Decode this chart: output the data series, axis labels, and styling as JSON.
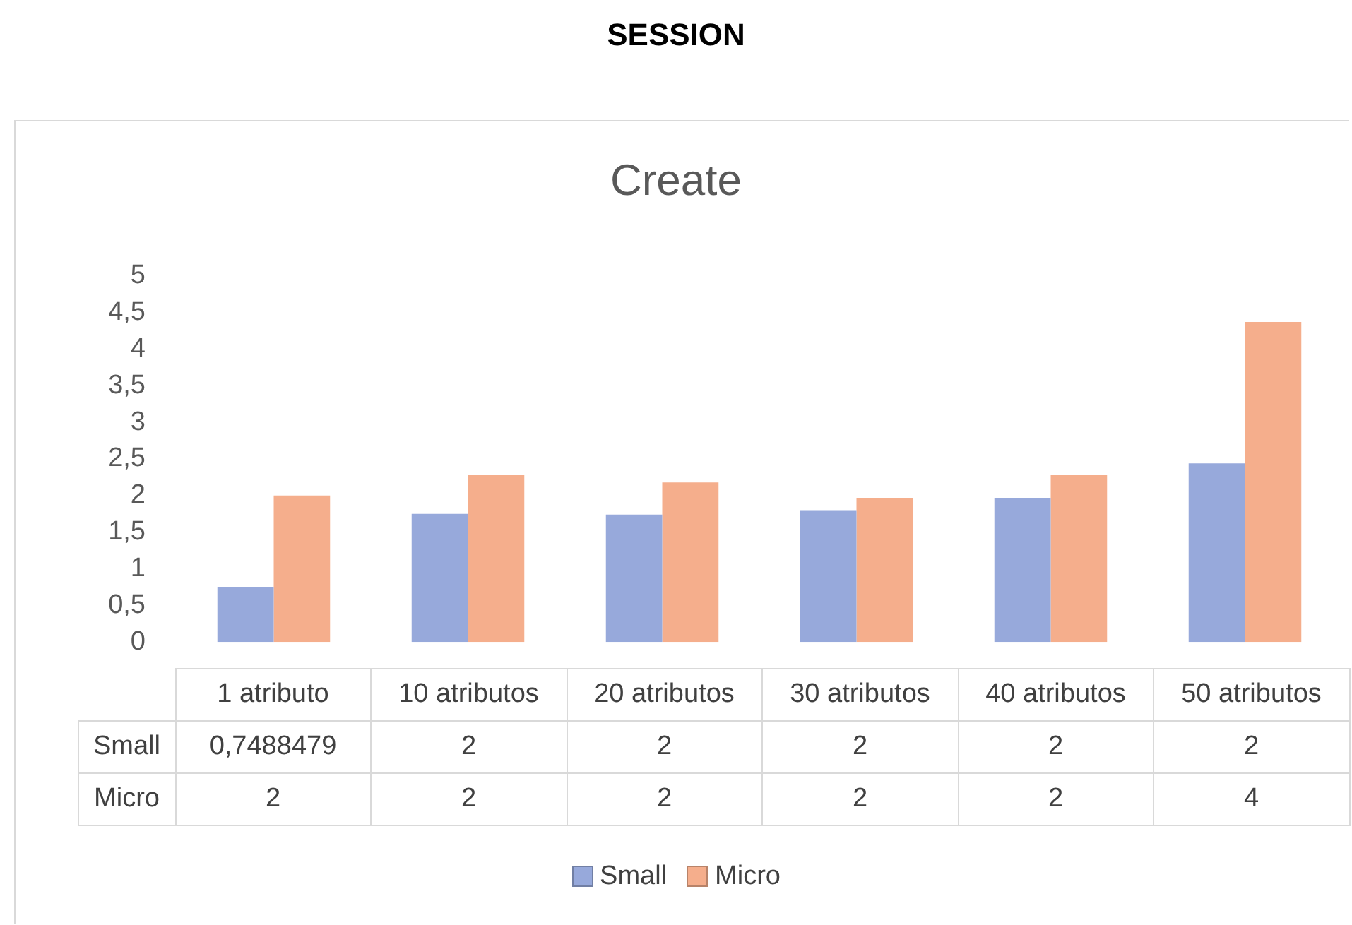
{
  "chart_data": {
    "type": "bar",
    "title": "SESSION",
    "subtitle": "Create",
    "categories": [
      "1 atributo",
      "10 atributos",
      "20 atributos",
      "30 atributos",
      "40 atributos",
      "50 atributos"
    ],
    "series": [
      {
        "name": "Small",
        "color": "#97a9db",
        "values": [
          0.7488479,
          1.75,
          1.74,
          1.8,
          1.97,
          2.44
        ],
        "value_labels": [
          "0,7488479",
          "2",
          "2",
          "2",
          "2",
          "2"
        ]
      },
      {
        "name": "Micro",
        "color": "#f5ae8c",
        "values": [
          2,
          2.28,
          2.18,
          1.97,
          2.28,
          4.37
        ],
        "value_labels": [
          "2",
          "2",
          "2",
          "2",
          "2",
          "4"
        ]
      }
    ],
    "ylim": [
      0,
      5
    ],
    "yticks": [
      0,
      {
        "value": 0.5,
        "label": "0,5"
      },
      1,
      {
        "value": 1.5,
        "label": "1,5"
      },
      2,
      {
        "value": 2.5,
        "label": "2,5"
      },
      3,
      {
        "value": 3.5,
        "label": "3,5"
      },
      4,
      {
        "value": 4.5,
        "label": "4,5"
      },
      5
    ],
    "legend": "bottom"
  }
}
